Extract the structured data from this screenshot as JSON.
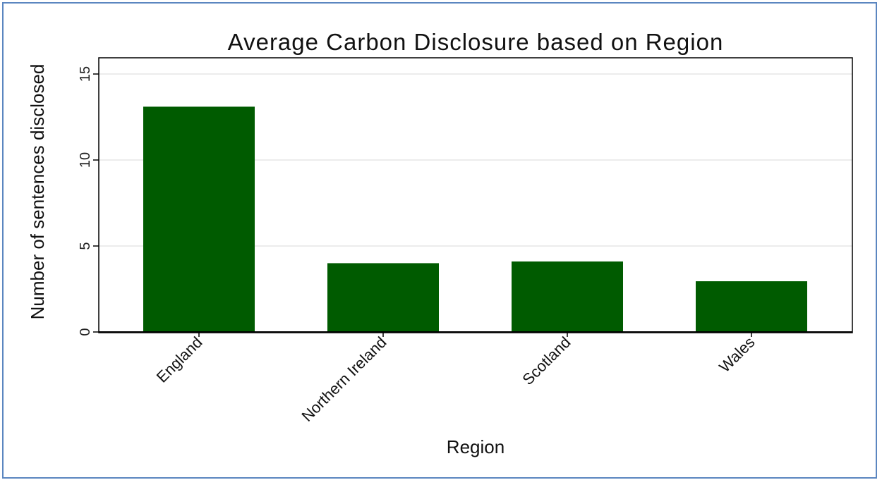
{
  "chart_data": {
    "type": "bar",
    "title": "Average Carbon Disclosure based on Region",
    "xlabel": "Region",
    "ylabel": "Number of sentences disclosed",
    "categories": [
      "England",
      "Northern Ireland",
      "Scotland",
      "Wales"
    ],
    "values": [
      13.1,
      4.0,
      4.1,
      2.95
    ],
    "ylim": [
      0,
      15
    ],
    "yticks": [
      "0",
      "5",
      "10",
      "15"
    ],
    "grid": true,
    "legend": "none",
    "bar_color": "#005b00"
  }
}
